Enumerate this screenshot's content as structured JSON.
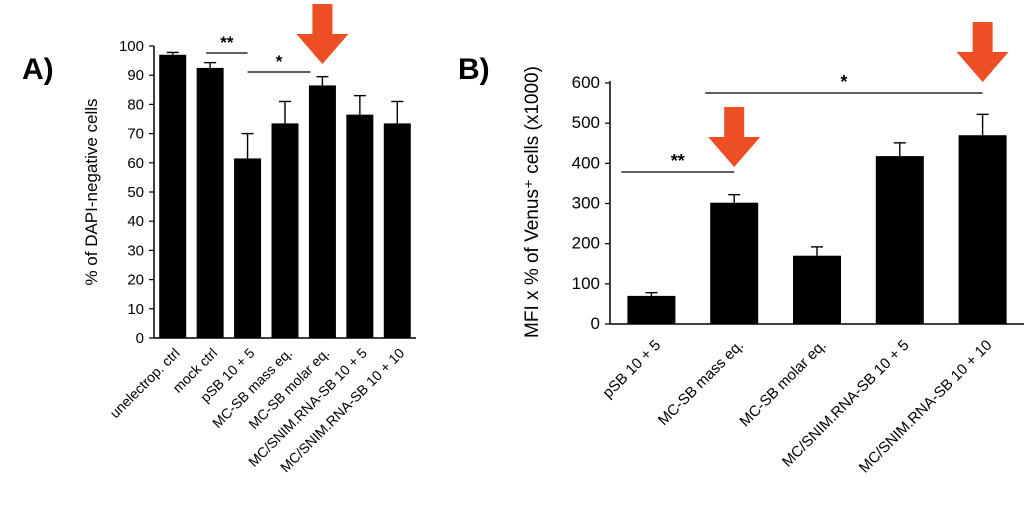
{
  "colors": {
    "bar": "#000000",
    "arrow": "#EE4E23",
    "axis": "#000000"
  },
  "chart_data": [
    {
      "type": "bar",
      "panel_label": "A)",
      "ylabel": "% of DAPI-negative cells",
      "xlabel": "",
      "ylim": [
        0,
        100
      ],
      "yticks": [
        "0",
        "10",
        "20",
        "30",
        "40",
        "50",
        "60",
        "70",
        "80",
        "90",
        "100"
      ],
      "categories": [
        "unelectrop. ctrl",
        "mock ctrl",
        "pSB 10 + 5",
        "MC-SB mass eq.",
        "MC-SB molar eq.",
        "MC/SNIM.RNA-SB 10 + 5",
        "MC/SNIM.RNA-SB 10 + 10"
      ],
      "values": [
        97,
        92.5,
        61.5,
        73.5,
        86.5,
        76.5,
        73.5
      ],
      "errors": [
        0.8,
        1.8,
        8.5,
        7.5,
        3,
        6.5,
        7.5
      ],
      "significance": [
        {
          "from": 1,
          "to": 2,
          "label": "**"
        },
        {
          "from": 2,
          "to": 4,
          "label": "*"
        }
      ],
      "highlight_arrow_index": 4,
      "grid": false
    },
    {
      "type": "bar",
      "panel_label": "B)",
      "ylabel": "MFI x % of Venus⁺ cells (x1000)",
      "xlabel": "",
      "ylim": [
        0,
        600
      ],
      "yticks": [
        "0",
        "100",
        "200",
        "300",
        "400",
        "500",
        "600"
      ],
      "categories": [
        "pSB 10 + 5",
        "MC-SB mass eq.",
        "MC-SB molar eq.",
        "MC/SNIM.RNA-SB 10 + 5",
        "MC/SNIM.RNA-SB 10 + 10"
      ],
      "values": [
        70,
        302,
        170,
        418,
        470
      ],
      "errors": [
        8,
        20,
        22,
        33,
        52
      ],
      "significance": [
        {
          "from": 0,
          "to": 1,
          "label": "**"
        },
        {
          "from": 1,
          "to": 4,
          "label": "*"
        }
      ],
      "highlight_arrow_index": [
        1,
        4
      ],
      "grid": false
    }
  ]
}
